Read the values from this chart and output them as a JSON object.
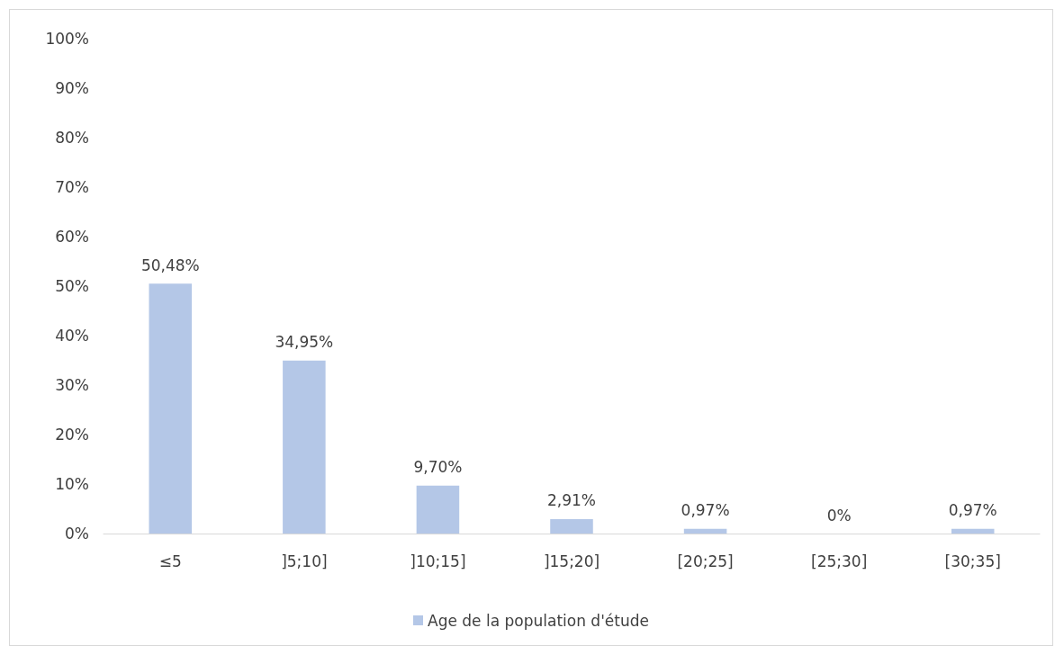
{
  "chart_data": {
    "type": "bar",
    "categories": [
      "≤5",
      "]5;10]",
      "]10;15]",
      "]15;20]",
      "[20;25]",
      "[25;30]",
      "[30;35]"
    ],
    "series": [
      {
        "name": "Age de la population d'étude",
        "color": "#b4c7e7",
        "values": [
          50.48,
          34.95,
          9.7,
          2.91,
          0.97,
          0,
          0.97
        ],
        "value_labels": [
          "50,48%",
          "34,95%",
          "9,70%",
          "2,91%",
          "0,97%",
          "0%",
          "0,97%"
        ]
      }
    ],
    "ylim": [
      0,
      100
    ],
    "yticks": [
      {
        "value": 0,
        "label": "0%"
      },
      {
        "value": 10,
        "label": "10%"
      },
      {
        "value": 20,
        "label": "20%"
      },
      {
        "value": 30,
        "label": "30%"
      },
      {
        "value": 40,
        "label": "40%"
      },
      {
        "value": 50,
        "label": "50%"
      },
      {
        "value": 60,
        "label": "60%"
      },
      {
        "value": 70,
        "label": "70%"
      },
      {
        "value": 80,
        "label": "80%"
      },
      {
        "value": 90,
        "label": "90%"
      },
      {
        "value": 100,
        "label": "100%"
      }
    ],
    "grid": false,
    "legend": "bottom"
  }
}
